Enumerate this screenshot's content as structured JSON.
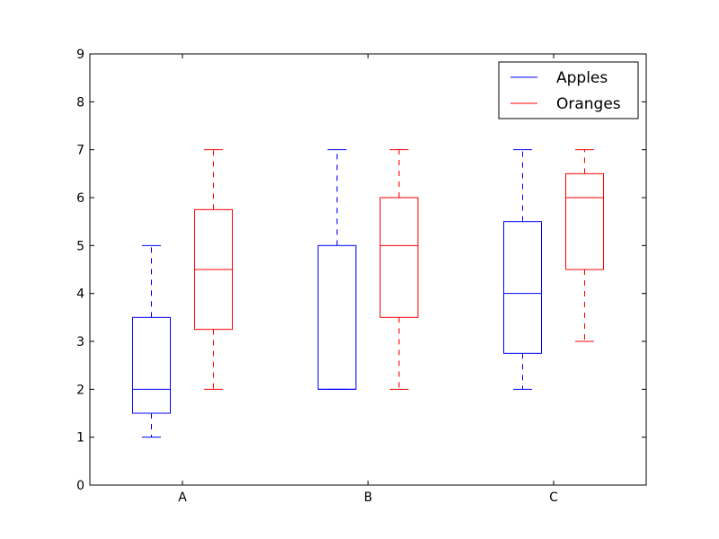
{
  "chart_data": {
    "type": "boxplot",
    "categories": [
      "A",
      "B",
      "C"
    ],
    "ylim": [
      0,
      9
    ],
    "yticks": [
      0,
      1,
      2,
      3,
      4,
      5,
      6,
      7,
      8,
      9
    ],
    "legend": {
      "position": "top-right",
      "entries": [
        "Apples",
        "Oranges"
      ]
    },
    "series": [
      {
        "name": "Apples",
        "color": "#0000ff",
        "boxes": [
          {
            "category": "A",
            "whisker_low": 1,
            "q1": 1.5,
            "median": 2,
            "q3": 3.5,
            "whisker_high": 5
          },
          {
            "category": "B",
            "whisker_low": 2,
            "q1": 2,
            "median": 2,
            "q3": 5,
            "whisker_high": 7
          },
          {
            "category": "C",
            "whisker_low": 2,
            "q1": 2.75,
            "median": 4,
            "q3": 5.5,
            "whisker_high": 7
          }
        ]
      },
      {
        "name": "Oranges",
        "color": "#ff0000",
        "boxes": [
          {
            "category": "A",
            "whisker_low": 2,
            "q1": 3.25,
            "median": 4.5,
            "q3": 5.75,
            "whisker_high": 7
          },
          {
            "category": "B",
            "whisker_low": 2,
            "q1": 3.5,
            "median": 5,
            "q3": 6,
            "whisker_high": 7
          },
          {
            "category": "C",
            "whisker_low": 3,
            "q1": 4.5,
            "median": 6,
            "q3": 6.5,
            "whisker_high": 7
          }
        ]
      }
    ]
  }
}
